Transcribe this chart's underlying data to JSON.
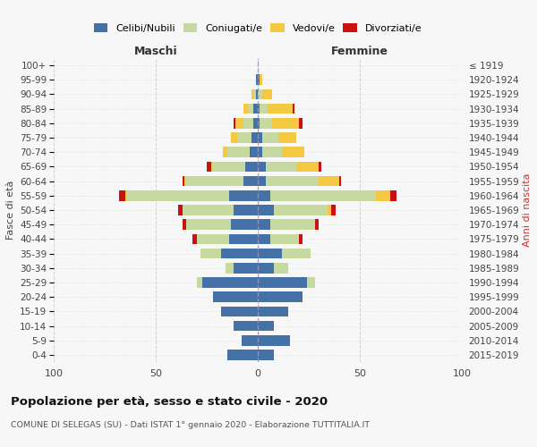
{
  "age_groups": [
    "0-4",
    "5-9",
    "10-14",
    "15-19",
    "20-24",
    "25-29",
    "30-34",
    "35-39",
    "40-44",
    "45-49",
    "50-54",
    "55-59",
    "60-64",
    "65-69",
    "70-74",
    "75-79",
    "80-84",
    "85-89",
    "90-94",
    "95-99",
    "100+"
  ],
  "birth_years": [
    "2015-2019",
    "2010-2014",
    "2005-2009",
    "2000-2004",
    "1995-1999",
    "1990-1994",
    "1985-1989",
    "1980-1984",
    "1975-1979",
    "1970-1974",
    "1965-1969",
    "1960-1964",
    "1955-1959",
    "1950-1954",
    "1945-1949",
    "1940-1944",
    "1935-1939",
    "1930-1934",
    "1925-1929",
    "1920-1924",
    "≤ 1919"
  ],
  "maschi": {
    "celibi": [
      15,
      8,
      12,
      18,
      22,
      27,
      12,
      18,
      14,
      13,
      12,
      14,
      7,
      6,
      4,
      3,
      2,
      2,
      1,
      1,
      0
    ],
    "coniugati": [
      0,
      0,
      0,
      0,
      0,
      3,
      4,
      10,
      16,
      22,
      25,
      50,
      28,
      16,
      11,
      7,
      5,
      3,
      1,
      0,
      0
    ],
    "vedovi": [
      0,
      0,
      0,
      0,
      0,
      0,
      0,
      0,
      0,
      0,
      0,
      1,
      1,
      1,
      2,
      3,
      4,
      2,
      1,
      0,
      0
    ],
    "divorziati": [
      0,
      0,
      0,
      0,
      0,
      0,
      0,
      0,
      2,
      2,
      2,
      3,
      1,
      2,
      0,
      0,
      1,
      0,
      0,
      0,
      0
    ]
  },
  "femmine": {
    "nubili": [
      8,
      16,
      8,
      15,
      22,
      24,
      8,
      12,
      6,
      6,
      8,
      6,
      4,
      4,
      2,
      2,
      1,
      1,
      0,
      1,
      0
    ],
    "coniugate": [
      0,
      0,
      0,
      0,
      0,
      4,
      7,
      14,
      14,
      22,
      26,
      52,
      26,
      15,
      10,
      8,
      6,
      4,
      2,
      0,
      0
    ],
    "vedove": [
      0,
      0,
      0,
      0,
      0,
      0,
      0,
      0,
      0,
      0,
      2,
      7,
      10,
      11,
      11,
      9,
      13,
      12,
      5,
      1,
      0
    ],
    "divorziate": [
      0,
      0,
      0,
      0,
      0,
      0,
      0,
      0,
      2,
      2,
      2,
      3,
      1,
      1,
      0,
      0,
      2,
      1,
      0,
      0,
      0
    ]
  },
  "colors": {
    "celibi": "#4472a8",
    "coniugati": "#c5d9a0",
    "vedovi": "#f5c842",
    "divorziati": "#cc1010"
  },
  "xlim": 100,
  "title": "Popolazione per età, sesso e stato civile - 2020",
  "subtitle": "COMUNE DI SELEGAS (SU) - Dati ISTAT 1° gennaio 2020 - Elaborazione TUTTITALIA.IT",
  "ylabel_left": "Fasce di età",
  "ylabel_right": "Anni di nascita",
  "xlabel_left": "Maschi",
  "xlabel_right": "Femmine",
  "bg_color": "#f7f7f7",
  "grid_color": "#cccccc"
}
